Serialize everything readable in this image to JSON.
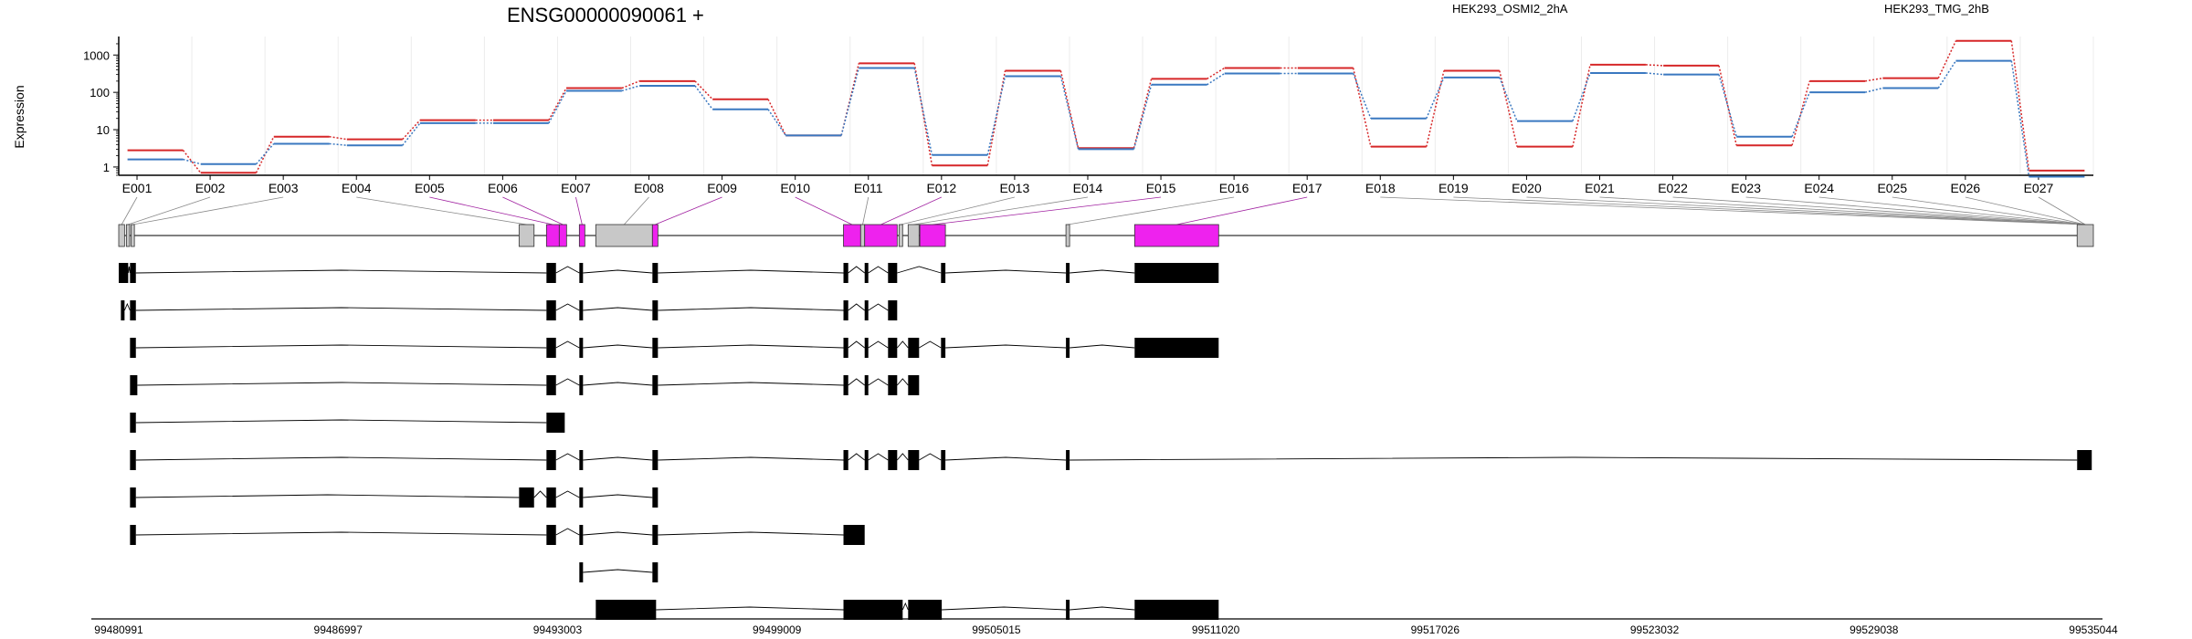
{
  "chart_data": {
    "type": "line",
    "title": "ENSG00000090061 +",
    "ylabel": "Expression",
    "y_scale": "log",
    "ylim": [
      0.6,
      2500
    ],
    "ytick_labels": [
      "1",
      "10",
      "100",
      "1000"
    ],
    "ytick_values": [
      1,
      10,
      100,
      1000
    ],
    "categories": [
      "E001",
      "E002",
      "E003",
      "E004",
      "E005",
      "E006",
      "E007",
      "E008",
      "E009",
      "E010",
      "E011",
      "E012",
      "E013",
      "E014",
      "E015",
      "E016",
      "E017",
      "E018",
      "E019",
      "E020",
      "E021",
      "E022",
      "E023",
      "E024",
      "E025",
      "E026",
      "E027"
    ],
    "series": [
      {
        "name": "HEK293_OSMI2_2hA",
        "color": "#d62728",
        "values": [
          2.8,
          0.7,
          6.5,
          5.5,
          18,
          18,
          130,
          200,
          65,
          7,
          600,
          1.1,
          380,
          3.2,
          230,
          450,
          450,
          3.5,
          380,
          3.5,
          550,
          520,
          3.8,
          200,
          240,
          2400,
          0.8
        ]
      },
      {
        "name": "HEK293_TMG_2hB",
        "color": "#3a78c0",
        "values": [
          1.6,
          1.2,
          4.2,
          3.8,
          15,
          15,
          110,
          150,
          35,
          7,
          450,
          2.1,
          270,
          3,
          160,
          320,
          320,
          20,
          250,
          17,
          330,
          300,
          6.5,
          100,
          130,
          700,
          0.55
        ]
      }
    ],
    "grid": true,
    "legend_position": "top-right",
    "genome_coordinates": [
      "99480991",
      "99486997",
      "99493003",
      "99499009",
      "99505015",
      "99511020",
      "99517026",
      "99523032",
      "99529038",
      "99535044"
    ],
    "gene_model": {
      "color_significant": "#ee22ee",
      "color_other": "#c8c8c8",
      "exons": [
        {
          "start": 99480991,
          "end": 99481150,
          "highlight": false
        },
        {
          "start": 99481200,
          "end": 99481290,
          "highlight": false
        },
        {
          "start": 99481330,
          "end": 99481420,
          "highlight": false
        },
        {
          "start": 99491950,
          "end": 99492360,
          "highlight": false
        },
        {
          "start": 99492700,
          "end": 99493050,
          "highlight": true
        },
        {
          "start": 99493050,
          "end": 99493250,
          "highlight": true
        },
        {
          "start": 99493600,
          "end": 99493750,
          "highlight": true
        },
        {
          "start": 99494050,
          "end": 99495600,
          "highlight": false
        },
        {
          "start": 99495600,
          "end": 99495750,
          "highlight": true
        },
        {
          "start": 99500830,
          "end": 99501300,
          "highlight": true
        },
        {
          "start": 99501300,
          "end": 99501410,
          "highlight": false
        },
        {
          "start": 99501410,
          "end": 99502300,
          "highlight": true
        },
        {
          "start": 99502350,
          "end": 99502450,
          "highlight": false
        },
        {
          "start": 99502600,
          "end": 99502900,
          "highlight": false
        },
        {
          "start": 99502920,
          "end": 99503620,
          "highlight": true
        },
        {
          "start": 99506920,
          "end": 99507020,
          "highlight": false
        },
        {
          "start": 99508800,
          "end": 99511100,
          "highlight": true
        },
        {
          "start": 99534600,
          "end": 99535044,
          "highlight": false
        }
      ]
    },
    "transcripts": [
      {
        "exons": [
          [
            99480991,
            99481250
          ],
          [
            99481300,
            99481460
          ],
          [
            99492700,
            99492960
          ],
          [
            99493600,
            99493700
          ],
          [
            99495600,
            99495750
          ],
          [
            99500830,
            99500960
          ],
          [
            99501410,
            99501510
          ],
          [
            99502050,
            99502300
          ],
          [
            99503500,
            99503620
          ],
          [
            99506920,
            99507020
          ],
          [
            99508800,
            99511100
          ]
        ]
      },
      {
        "exons": [
          [
            99481050,
            99481150
          ],
          [
            99481300,
            99481460
          ],
          [
            99492700,
            99492960
          ],
          [
            99493600,
            99493700
          ],
          [
            99495600,
            99495750
          ],
          [
            99500830,
            99500960
          ],
          [
            99501410,
            99501510
          ],
          [
            99502050,
            99502300
          ]
        ]
      },
      {
        "exons": [
          [
            99481300,
            99481460
          ],
          [
            99492700,
            99492960
          ],
          [
            99493600,
            99493700
          ],
          [
            99495600,
            99495750
          ],
          [
            99500830,
            99500960
          ],
          [
            99501410,
            99501510
          ],
          [
            99502050,
            99502300
          ],
          [
            99502600,
            99502900
          ],
          [
            99503500,
            99503620
          ],
          [
            99506920,
            99507020
          ],
          [
            99508800,
            99511100
          ]
        ]
      },
      {
        "exons": [
          [
            99481300,
            99481500
          ],
          [
            99492700,
            99492960
          ],
          [
            99493600,
            99493700
          ],
          [
            99495600,
            99495750
          ],
          [
            99500830,
            99500960
          ],
          [
            99501410,
            99501510
          ],
          [
            99502050,
            99502300
          ],
          [
            99502600,
            99502900
          ]
        ]
      },
      {
        "exons": [
          [
            99481300,
            99481460
          ],
          [
            99492700,
            99493200
          ]
        ]
      },
      {
        "exons": [
          [
            99481300,
            99481460
          ],
          [
            99492700,
            99492960
          ],
          [
            99493600,
            99493700
          ],
          [
            99495600,
            99495750
          ],
          [
            99500830,
            99500960
          ],
          [
            99501410,
            99501510
          ],
          [
            99502050,
            99502300
          ],
          [
            99502600,
            99502900
          ],
          [
            99503500,
            99503620
          ],
          [
            99506920,
            99507020
          ],
          [
            99534600,
            99535000
          ]
        ]
      },
      {
        "exons": [
          [
            99481300,
            99481460
          ],
          [
            99491950,
            99492360
          ],
          [
            99492700,
            99492960
          ],
          [
            99493600,
            99493700
          ],
          [
            99495600,
            99495750
          ]
        ]
      },
      {
        "exons": [
          [
            99481300,
            99481460
          ],
          [
            99492700,
            99492960
          ],
          [
            99493600,
            99493700
          ],
          [
            99495600,
            99495750
          ],
          [
            99500830,
            99501410
          ]
        ]
      },
      {
        "exons": [
          [
            99493600,
            99493700
          ],
          [
            99495600,
            99495750
          ]
        ]
      },
      {
        "exons": [
          [
            99494050,
            99495700
          ],
          [
            99500830,
            99502450
          ],
          [
            99502600,
            99503520
          ],
          [
            99506920,
            99507020
          ],
          [
            99508800,
            99511100
          ]
        ]
      }
    ]
  }
}
